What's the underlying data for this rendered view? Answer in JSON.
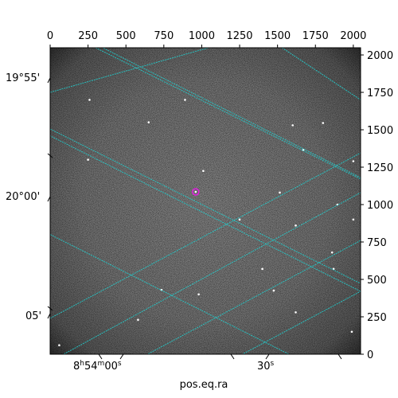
{
  "chart_data": {
    "type": "image",
    "image_description": "astronomical grayscale star field with overlaid celestial coordinate grid",
    "colors": {
      "grid": "#22cccc",
      "marker": "#dd22dd",
      "frame": "#000000",
      "background": "#ffffff"
    },
    "pixel_axes": {
      "x": {
        "range": [
          0,
          2048
        ],
        "ticks": [
          0,
          250,
          500,
          750,
          1000,
          1250,
          1500,
          1750,
          2000
        ],
        "position": "top"
      },
      "y": {
        "range": [
          0,
          2048
        ],
        "ticks": [
          0,
          250,
          500,
          750,
          1000,
          1250,
          1500,
          1750,
          2000
        ],
        "position": "right"
      }
    },
    "world_axes": {
      "ra": {
        "label": "pos.eq.ra",
        "ticks": [
          {
            "h": "8",
            "m": "54",
            "s": "00"
          },
          {
            "s": "30"
          }
        ]
      },
      "dec": {
        "ticks": [
          {
            "deg": "19°",
            "min": "55'"
          },
          {
            "deg": "20°",
            "min": "00'"
          },
          {
            "min": "05'"
          }
        ]
      }
    },
    "marker": {
      "shape": "circle",
      "x_pix": 960,
      "y_pix": 1085
    },
    "stars": [
      [
        1670,
        1365
      ],
      [
        960,
        1085
      ],
      [
        1010,
        1225
      ],
      [
        980,
        400
      ],
      [
        1895,
        1000
      ],
      [
        1515,
        1080
      ],
      [
        1620,
        860
      ],
      [
        1400,
        570
      ],
      [
        1475,
        425
      ],
      [
        250,
        1300
      ],
      [
        650,
        1550
      ],
      [
        890,
        1700
      ],
      [
        1800,
        1545
      ],
      [
        1620,
        280
      ],
      [
        1870,
        570
      ],
      [
        580,
        230
      ],
      [
        735,
        430
      ],
      [
        2000,
        1290
      ],
      [
        260,
        1700
      ],
      [
        1250,
        900
      ],
      [
        1600,
        1530
      ],
      [
        1860,
        680
      ],
      [
        60,
        60
      ],
      [
        1990,
        150
      ],
      [
        2000,
        900
      ]
    ],
    "grid_lines": [
      [
        [
          0,
          2225
        ],
        [
          2048,
          1180
        ]
      ],
      [
        [
          0,
          1750
        ],
        [
          1045,
          2048
        ]
      ],
      [
        [
          0,
          1505
        ],
        [
          2048,
          473
        ]
      ],
      [
        [
          0,
          800
        ],
        [
          2048,
          -240
        ]
      ],
      [
        [
          -1160,
          2048
        ],
        [
          2048,
          420
        ]
      ],
      [
        [
          0,
          240
        ],
        [
          2048,
          1345
        ]
      ],
      [
        [
          -20,
          -60
        ],
        [
          2048,
          1080
        ]
      ],
      [
        [
          550,
          -50
        ],
        [
          2048,
          760
        ]
      ],
      [
        [
          1250,
          -10
        ],
        [
          2048,
          420
        ]
      ],
      [
        [
          300,
          2048
        ],
        [
          2048,
          1170
        ]
      ],
      [
        [
          1530,
          2048
        ],
        [
          2048,
          1700
        ]
      ]
    ]
  }
}
